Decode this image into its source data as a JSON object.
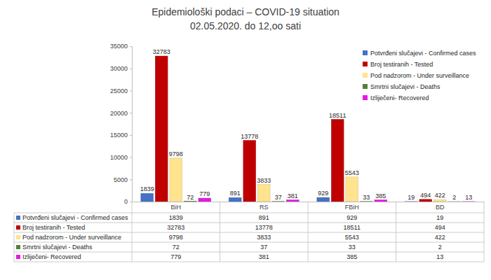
{
  "chart_data": {
    "type": "bar",
    "title": "Epidemiološki podaci – COVID-19 situation",
    "subtitle": "02.05.2020. do 12,oo sati",
    "categories": [
      "BiH",
      "RS",
      "FBiH",
      "BD"
    ],
    "series": [
      {
        "name": "Potvrđeni slučajevi - Confirmed cases",
        "color": "#4472c4",
        "values": [
          1839,
          891,
          929,
          19
        ]
      },
      {
        "name": "Broj testiranih - Tested",
        "color": "#c00000",
        "values": [
          32783,
          13778,
          18511,
          494
        ]
      },
      {
        "name": "Pod nadzorom - Under surveillance",
        "color": "#ffe38f",
        "values": [
          9798,
          3833,
          5543,
          422
        ]
      },
      {
        "name": "Smrtni slučajevi - Deaths",
        "color": "#548235",
        "values": [
          72,
          37,
          33,
          2
        ]
      },
      {
        "name": "Izliječeni- Recovered",
        "color": "#e619e6",
        "values": [
          779,
          381,
          385,
          13
        ]
      }
    ],
    "ylim": [
      0,
      35000
    ],
    "yticks": [
      0,
      5000,
      10000,
      15000,
      20000,
      25000,
      30000,
      35000
    ],
    "grid": false,
    "legend": "upper right",
    "data_labels": true
  }
}
